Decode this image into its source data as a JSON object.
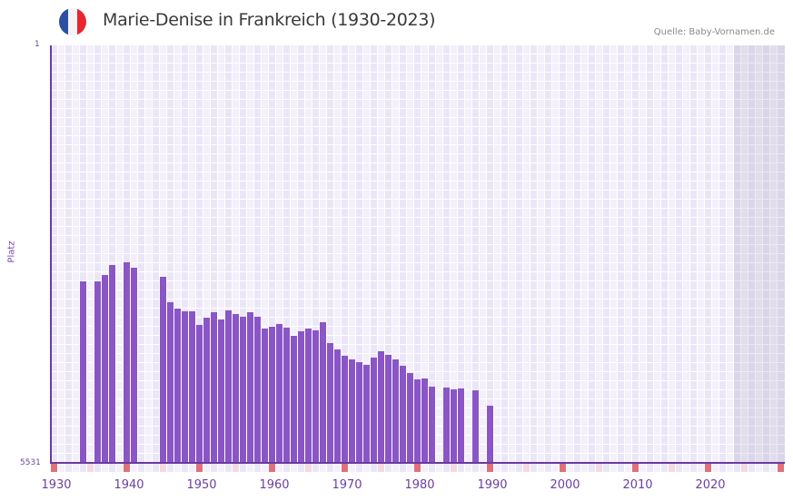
{
  "header": {
    "title": "Marie-Denise in Frankreich (1930-2023)",
    "source": "Quelle: Baby-Vornamen.de",
    "flag_colors": [
      "#2c4fa3",
      "#f4f4f8",
      "#e8262c"
    ]
  },
  "axis": {
    "y_top_label": "1",
    "y_bottom_label": "5531",
    "y_title": "Platz",
    "x_ticks": [
      "1930",
      "1940",
      "1950",
      "1960",
      "1970",
      "1980",
      "1990",
      "2000",
      "2010",
      "2020"
    ]
  },
  "colors": {
    "bar": "#8a55c6",
    "axis": "#6a3aa0",
    "decade_marker": "#e0707a",
    "half_decade_marker": "#f5d8e0",
    "grid_light": "#f3f0fb",
    "grid_dark": "#ebe6f7"
  },
  "chart_data": {
    "type": "bar",
    "title": "Marie-Denise in Frankreich (1930-2023)",
    "xlabel": "",
    "ylabel": "Platz",
    "y_inverted": true,
    "ylim": [
      1,
      5531
    ],
    "xlim": [
      1930,
      2030
    ],
    "future_shaded_from": 2024,
    "grid": true,
    "categories": [
      1934,
      1936,
      1937,
      1938,
      1940,
      1941,
      1945,
      1946,
      1947,
      1948,
      1949,
      1950,
      1951,
      1952,
      1953,
      1954,
      1955,
      1956,
      1957,
      1958,
      1959,
      1960,
      1961,
      1962,
      1963,
      1964,
      1965,
      1966,
      1967,
      1968,
      1969,
      1970,
      1971,
      1972,
      1973,
      1974,
      1975,
      1976,
      1977,
      1978,
      1979,
      1980,
      1981,
      1982,
      1984,
      1985,
      1986,
      1988,
      1990
    ],
    "values": [
      3127,
      3127,
      3043,
      2910,
      2874,
      2946,
      3067,
      3403,
      3487,
      3523,
      3523,
      3704,
      3608,
      3535,
      3632,
      3511,
      3560,
      3596,
      3535,
      3596,
      3752,
      3728,
      3692,
      3740,
      3848,
      3788,
      3752,
      3776,
      3668,
      3944,
      4028,
      4113,
      4161,
      4197,
      4233,
      4137,
      4053,
      4101,
      4161,
      4245,
      4341,
      4425,
      4413,
      4521,
      4533,
      4557,
      4545,
      4569,
      4774
    ]
  }
}
